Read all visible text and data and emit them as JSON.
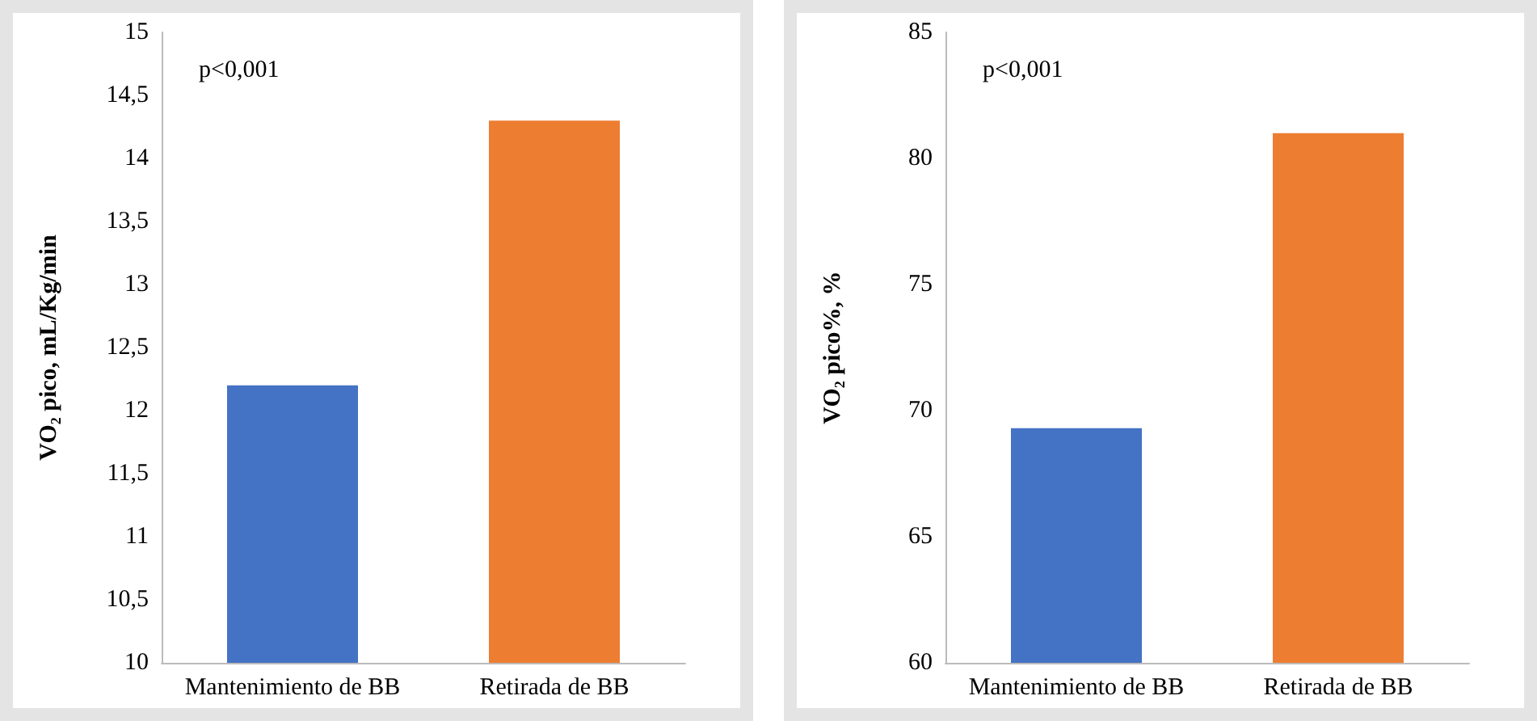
{
  "chart_data": [
    {
      "type": "bar",
      "ylabel": "VO₂ pico, mL/Kg/min",
      "categories": [
        "Mantenimiento de BB",
        "Retirada de BB"
      ],
      "values": [
        12.2,
        14.3
      ],
      "colors": [
        "#4472c4",
        "#ed7d31"
      ],
      "ylim": [
        10,
        15
      ],
      "yticks": [
        {
          "value": 10,
          "label": "10"
        },
        {
          "value": 10.5,
          "label": "10,5"
        },
        {
          "value": 11,
          "label": "11"
        },
        {
          "value": 11.5,
          "label": "11,5"
        },
        {
          "value": 12,
          "label": "12"
        },
        {
          "value": 12.5,
          "label": "12,5"
        },
        {
          "value": 13,
          "label": "13"
        },
        {
          "value": 13.5,
          "label": "13,5"
        },
        {
          "value": 14,
          "label": "14"
        },
        {
          "value": 14.5,
          "label": "14,5"
        },
        {
          "value": 15,
          "label": "15"
        }
      ],
      "annotations": [
        "p<0,001"
      ]
    },
    {
      "type": "bar",
      "ylabel": "VO₂ pico%, %",
      "categories": [
        "Mantenimiento de BB",
        "Retirada de BB"
      ],
      "values": [
        69.3,
        81.0
      ],
      "colors": [
        "#4472c4",
        "#ed7d31"
      ],
      "ylim": [
        60,
        85
      ],
      "yticks": [
        60,
        65,
        70,
        75,
        80,
        85
      ],
      "annotations": [
        "p<0,001"
      ]
    }
  ]
}
